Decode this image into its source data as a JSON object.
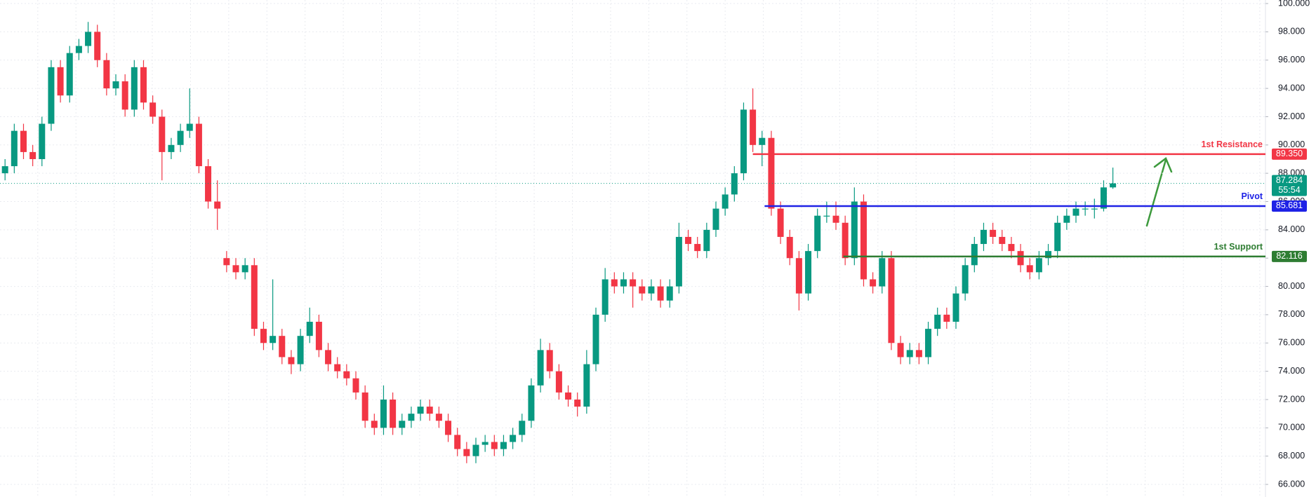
{
  "chart_data": {
    "type": "candlestick",
    "open": [
      88,
      88.5,
      91,
      89.5,
      89,
      91.5,
      95.5,
      93.5,
      96.5,
      97,
      98,
      96,
      94,
      94.5,
      92.5,
      95.5,
      93,
      92,
      89.5,
      90,
      91,
      91.5,
      88.5,
      86,
      82,
      81.5,
      81,
      81.5,
      77,
      76,
      76.5,
      75,
      74.5,
      76.5,
      77.5,
      75.5,
      74.5,
      74,
      73.5,
      72.5,
      70.5,
      70,
      72,
      70,
      70.5,
      71,
      71.5,
      71,
      70.5,
      69.5,
      68.5,
      68,
      68.8,
      69,
      68.5,
      69,
      69.5,
      70.5,
      73,
      75.5,
      74,
      72.5,
      72,
      71.5,
      74.5,
      78,
      80.5,
      80,
      80.5,
      80,
      79.5,
      80,
      79,
      80,
      83.5,
      83,
      82.5,
      84,
      85.5,
      86.5,
      88,
      92.5,
      90,
      90.5,
      85.5,
      83.5,
      82,
      79.5,
      82.5,
      85,
      85,
      84.5,
      82,
      86,
      80.5,
      80,
      82,
      76,
      75,
      75.5,
      75,
      77,
      78,
      77.5,
      79.5,
      81.5,
      83,
      84,
      83.5,
      83,
      82.5,
      81.5,
      81,
      82,
      82.5,
      84.5,
      85,
      85.5,
      85.5,
      85.5,
      87
    ],
    "high": [
      89,
      91.5,
      91.5,
      90,
      92,
      96,
      96,
      97,
      97.5,
      98.7,
      98.5,
      96.5,
      95,
      95,
      96,
      96,
      93.5,
      92.5,
      90.5,
      91.5,
      94,
      92,
      89,
      87.5,
      82.5,
      82,
      82,
      82,
      77.5,
      80.5,
      77,
      75.5,
      77,
      78.5,
      78,
      76,
      75,
      74.5,
      74,
      73,
      71,
      73,
      72.5,
      71,
      71.5,
      72,
      72,
      71.5,
      71,
      70,
      69,
      69.3,
      69.5,
      69.5,
      69.5,
      70,
      71,
      73.5,
      76.3,
      76,
      74.5,
      73,
      72.5,
      75.5,
      78.5,
      81.3,
      81,
      81,
      81,
      80.5,
      80.5,
      80.5,
      80.5,
      84.5,
      84,
      83.5,
      84.5,
      86,
      87,
      88.5,
      93,
      94,
      91,
      91,
      86,
      84,
      82.5,
      83,
      85.5,
      86,
      86,
      85,
      87,
      86.5,
      81,
      82.5,
      82.5,
      76.5,
      76,
      76,
      77.5,
      78.5,
      78.5,
      80,
      82,
      83.5,
      84.5,
      84.5,
      84,
      83.5,
      83,
      82,
      82.5,
      83,
      85,
      85.5,
      86,
      86,
      86.2,
      87.5,
      88.4
    ],
    "low": [
      87.5,
      88,
      89,
      88.5,
      88.5,
      91,
      93,
      93,
      96,
      96.5,
      95.5,
      93.5,
      93.5,
      92,
      92,
      92.5,
      91.5,
      87.5,
      89,
      89.5,
      90.5,
      88,
      85.5,
      84,
      81,
      80.5,
      80.5,
      76.5,
      75.5,
      75.5,
      74.5,
      73.8,
      74,
      76,
      75,
      74,
      73.5,
      73,
      72,
      70,
      69.5,
      69.5,
      69.5,
      69.5,
      70,
      70.5,
      70.5,
      70,
      69,
      68,
      67.5,
      67.5,
      68.3,
      68,
      68,
      68.5,
      69,
      70,
      72.5,
      73.5,
      72,
      71.5,
      70.8,
      71,
      74,
      77.5,
      79.5,
      79.5,
      78.5,
      79,
      79,
      78.5,
      78.5,
      79.5,
      82.5,
      82,
      82,
      83.5,
      85,
      86,
      87.5,
      89.5,
      88.5,
      85,
      83,
      81.5,
      78.3,
      79,
      82,
      84.5,
      84,
      81.5,
      81.5,
      80,
      79.5,
      79.5,
      75.5,
      74.5,
      74.5,
      74.5,
      74.5,
      76.5,
      77,
      77,
      79,
      81,
      82.5,
      83,
      82.5,
      82,
      81,
      80.5,
      80.5,
      81.5,
      82,
      84,
      84.5,
      85,
      84.8,
      85.3,
      86.9
    ],
    "close": [
      88.5,
      91,
      89.5,
      89,
      91.5,
      95.5,
      93.5,
      96.5,
      97,
      98,
      96,
      94,
      94.5,
      92.5,
      95.5,
      93,
      92,
      89.5,
      90,
      91,
      91.5,
      88.5,
      86,
      85.5,
      81.5,
      81,
      81.5,
      77,
      76,
      76.5,
      75,
      74.5,
      76.5,
      77.5,
      75.5,
      74.5,
      74,
      73.5,
      72.5,
      70.5,
      70,
      72,
      70,
      70.5,
      71,
      71.5,
      71,
      70.5,
      69.5,
      68.5,
      68,
      68.8,
      69,
      68.5,
      69,
      69.5,
      70.5,
      73,
      75.5,
      74,
      72.5,
      72,
      71.5,
      74.5,
      78,
      80.5,
      80,
      80.5,
      80,
      79.5,
      80,
      79,
      80,
      83.5,
      83,
      82.5,
      84,
      85.5,
      86.5,
      88,
      92.5,
      90,
      90.5,
      85.5,
      83.5,
      82,
      79.5,
      82.5,
      85,
      85,
      84.5,
      82,
      86,
      80.5,
      80,
      82,
      76,
      75,
      75.5,
      75,
      77,
      78,
      77.5,
      79.5,
      81.5,
      83,
      84,
      83.5,
      83,
      82.5,
      81.5,
      81,
      82,
      82.5,
      84.5,
      85,
      85.5,
      85.5,
      85.5,
      87,
      87.284
    ],
    "up_color": "#089981",
    "down_color": "#f23645",
    "ylim": [
      65.11,
      100.25
    ],
    "yticks": [
      {
        "value": 66,
        "label": "66.000"
      },
      {
        "value": 68,
        "label": "68.000"
      },
      {
        "value": 70,
        "label": "70.000"
      },
      {
        "value": 72,
        "label": "72.000"
      },
      {
        "value": 74,
        "label": "74.000"
      },
      {
        "value": 76,
        "label": "76.000"
      },
      {
        "value": 78,
        "label": "78.000"
      },
      {
        "value": 80,
        "label": "80.000"
      },
      {
        "value": 82,
        "label": "82.000"
      },
      {
        "value": 84,
        "label": "84.000"
      },
      {
        "value": 86,
        "label": "86.000"
      },
      {
        "value": 88,
        "label": "88.000"
      },
      {
        "value": 90,
        "label": "90.000"
      },
      {
        "value": 92,
        "label": "92.000"
      },
      {
        "value": 94,
        "label": "94.000"
      },
      {
        "value": 96,
        "label": "96.000"
      },
      {
        "value": 98,
        "label": "98.000"
      },
      {
        "value": 100,
        "label": "100.000"
      }
    ],
    "grid": true,
    "levels": [
      {
        "name": "1st Resistance",
        "value": 89.35,
        "value_label": "89.350",
        "color": "#f23645"
      },
      {
        "name": "Pivot",
        "value": 85.681,
        "value_label": "85.681",
        "color": "#1e22e6"
      },
      {
        "name": "1st Support",
        "value": 82.116,
        "value_label": "82.116",
        "color": "#2e7d32"
      }
    ],
    "current_price": {
      "value": 87.284,
      "label": "87.284",
      "countdown": "55:54",
      "color": "#089981"
    }
  }
}
